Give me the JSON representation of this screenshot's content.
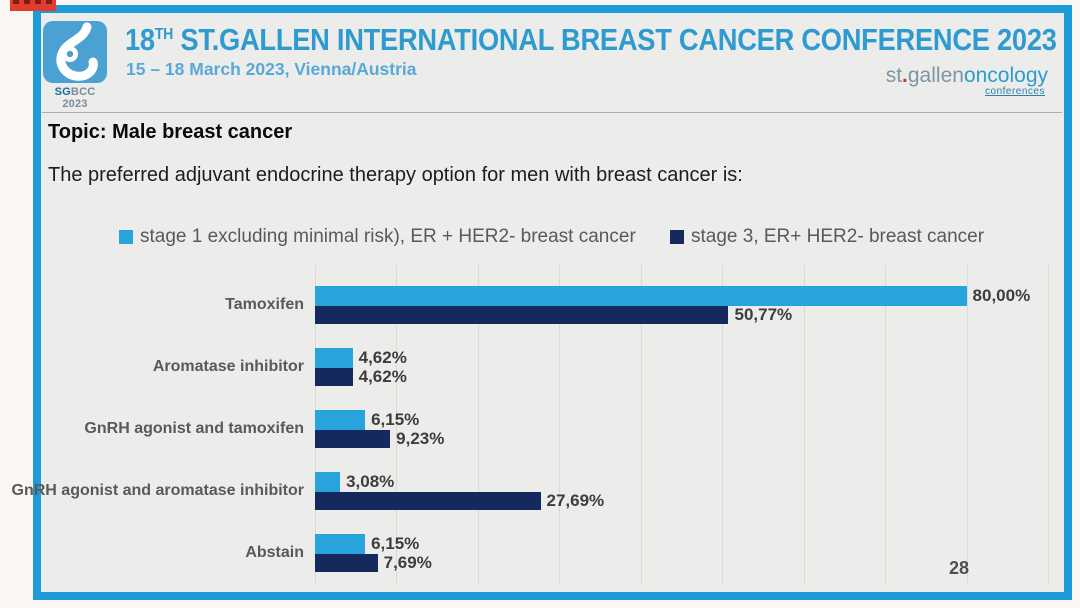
{
  "colors": {
    "frame-border": "#1D9AD9",
    "slide-bg": "#ECECEA",
    "logo-blue": "#4BA2D2",
    "title-blue": "#2E9BD0",
    "subtitle-blue": "#58A9D7",
    "brand-gray": "#7E95A4",
    "brand-blue": "#2E9CCE",
    "text-gray": "#595959",
    "value-text": "#3D3D3D",
    "gridline": "#D9D9D6",
    "red-tag": "#E23B30",
    "series1": "#29A3DC",
    "series2": "#16295E"
  },
  "slide": {
    "header": {
      "logo_caption": {
        "sg": "SG",
        "rest": "BCC 2023"
      },
      "title": {
        "number": "18",
        "ordinal": "TH",
        "rest": "ST.GALLEN INTERNATIONAL BREAST CANCER CONFERENCE 2023"
      },
      "subtitle": "15 – 18 March 2023, Vienna/Austria",
      "brand": {
        "st": "st",
        "dot": ".",
        "gallen": "gallen",
        "oncology": "oncology",
        "conferences": "conferences"
      }
    },
    "topic": "Topic: Male breast cancer",
    "question": "The preferred adjuvant endocrine therapy option for men with breast cancer is:"
  },
  "chart_data": {
    "type": "bar",
    "orientation": "horizontal",
    "title": "",
    "categories": [
      "Tamoxifen",
      "Aromatase inhibitor",
      "GnRH agonist and tamoxifen",
      "GnRH agonist and aromatase inhibitor",
      "Abstain"
    ],
    "series": [
      {
        "name": "stage 1 excluding minimal risk), ER + HER2- breast cancer",
        "color": "#29A3DC",
        "values": [
          80.0,
          4.62,
          6.15,
          3.08,
          6.15
        ],
        "labels": [
          "80,00%",
          "4,62%",
          "6,15%",
          "3,08%",
          "6,15%"
        ]
      },
      {
        "name": "stage 3, ER+ HER2- breast cancer",
        "color": "#16295E",
        "values": [
          50.77,
          4.62,
          9.23,
          27.69,
          7.69
        ],
        "labels": [
          "50,77%",
          "4,62%",
          "9,23%",
          "27,69%",
          "7,69%"
        ]
      }
    ],
    "xlim": [
      0,
      90
    ],
    "gridline_interval": 10,
    "grid": true,
    "legend_position": "top",
    "annotations": {
      "respondent_count": "28"
    }
  }
}
